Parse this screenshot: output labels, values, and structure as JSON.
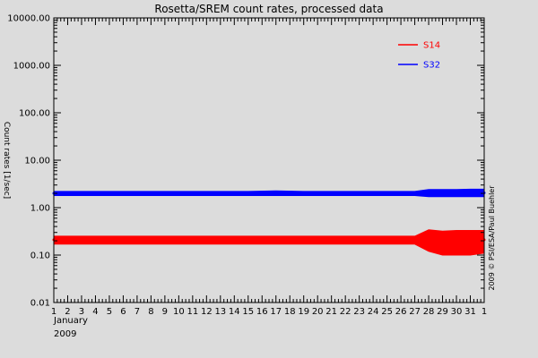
{
  "chart_data": {
    "type": "line",
    "title": "Rosetta/SREM count rates, processed data",
    "ylabel": "Count rates [1/sec]",
    "xlabel": "",
    "y_scale": "log",
    "ylim": [
      0.01,
      10000
    ],
    "y_ticks": [
      "0.01",
      "0.10",
      "1.00",
      "10.00",
      "100.00",
      "1000.00",
      "10000.00"
    ],
    "x_unit": "day of month",
    "xlim": [
      1,
      32
    ],
    "x_tick_labels": [
      "1",
      "2",
      "3",
      "4",
      "5",
      "6",
      "7",
      "8",
      "9",
      "10",
      "11",
      "12",
      "13",
      "14",
      "15",
      "16",
      "17",
      "18",
      "19",
      "20",
      "21",
      "22",
      "23",
      "24",
      "25",
      "26",
      "27",
      "28",
      "29",
      "30",
      "31",
      "1"
    ],
    "x_month_label": "January",
    "x_year_label": "2009",
    "credit": "2009 © PSI/ESA/Paul Buehler",
    "legend_placement": "top-right",
    "grid": false,
    "series": [
      {
        "name": "S14",
        "color": "#ff0000",
        "x": [
          1,
          3,
          5,
          7,
          9,
          11,
          13,
          15,
          17,
          19,
          21,
          23,
          25,
          27,
          28,
          29,
          30,
          31,
          32
        ],
        "y": [
          0.21,
          0.21,
          0.21,
          0.21,
          0.21,
          0.21,
          0.21,
          0.21,
          0.21,
          0.21,
          0.2,
          0.21,
          0.21,
          0.21,
          0.21,
          0.21,
          0.2,
          0.21,
          0.21
        ],
        "y_low": [
          0.17,
          0.17,
          0.17,
          0.17,
          0.17,
          0.17,
          0.17,
          0.17,
          0.17,
          0.17,
          0.17,
          0.17,
          0.17,
          0.17,
          0.12,
          0.1,
          0.1,
          0.1,
          0.11
        ],
        "y_high": [
          0.25,
          0.25,
          0.25,
          0.25,
          0.25,
          0.25,
          0.25,
          0.25,
          0.25,
          0.25,
          0.25,
          0.25,
          0.25,
          0.25,
          0.34,
          0.32,
          0.33,
          0.33,
          0.33
        ]
      },
      {
        "name": "S32",
        "color": "#0000ff",
        "x": [
          1,
          3,
          5,
          7,
          9,
          11,
          13,
          15,
          17,
          19,
          21,
          23,
          25,
          27,
          28,
          29,
          30,
          31,
          32
        ],
        "y": [
          2.0,
          2.0,
          2.0,
          2.0,
          2.0,
          2.0,
          2.0,
          2.0,
          2.0,
          2.0,
          1.95,
          2.0,
          2.0,
          2.0,
          2.0,
          2.0,
          2.0,
          2.05,
          2.05
        ],
        "y_low": [
          1.8,
          1.8,
          1.8,
          1.8,
          1.8,
          1.8,
          1.8,
          1.8,
          1.8,
          1.8,
          1.8,
          1.8,
          1.8,
          1.8,
          1.7,
          1.7,
          1.7,
          1.7,
          1.7
        ],
        "y_high": [
          2.2,
          2.2,
          2.2,
          2.2,
          2.2,
          2.2,
          2.2,
          2.2,
          2.25,
          2.2,
          2.2,
          2.2,
          2.2,
          2.2,
          2.4,
          2.4,
          2.4,
          2.45,
          2.45
        ]
      }
    ]
  }
}
